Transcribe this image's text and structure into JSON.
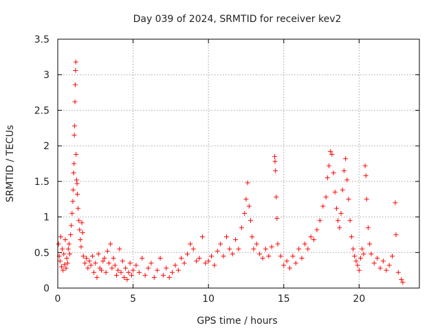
{
  "chart_data": {
    "type": "scatter",
    "title": "Day 039 of 2024, SRMTID for receiver kev2",
    "xlabel": "GPS time / hours",
    "ylabel": "SRMTID / TECUs",
    "xlim": [
      0,
      24
    ],
    "ylim": [
      0,
      3.5
    ],
    "x_ticks": [
      0,
      5,
      10,
      15,
      20
    ],
    "x_tick_labels": [
      "0",
      "5",
      "10",
      "15",
      "20"
    ],
    "y_ticks": [
      0,
      0.5,
      1,
      1.5,
      2,
      2.5,
      3,
      3.5
    ],
    "y_tick_labels": [
      "0",
      "0.5",
      "1",
      "1.5",
      "2",
      "2.5",
      "3",
      "3.5"
    ],
    "grid": true,
    "marker": "+",
    "color": "#ff0000",
    "series": [
      {
        "name": "kev2",
        "points": [
          [
            0.05,
            0.62
          ],
          [
            0.1,
            0.45
          ],
          [
            0.15,
            0.38
          ],
          [
            0.2,
            0.72
          ],
          [
            0.25,
            0.3
          ],
          [
            0.3,
            0.55
          ],
          [
            0.35,
            0.25
          ],
          [
            0.4,
            0.48
          ],
          [
            0.45,
            0.33
          ],
          [
            0.5,
            0.68
          ],
          [
            0.55,
            0.28
          ],
          [
            0.6,
            0.42
          ],
          [
            0.65,
            0.35
          ],
          [
            0.7,
            0.55
          ],
          [
            0.75,
            0.62
          ],
          [
            0.8,
            0.48
          ],
          [
            0.85,
            0.75
          ],
          [
            0.9,
            0.88
          ],
          [
            0.95,
            1.05
          ],
          [
            1.0,
            1.22
          ],
          [
            1.02,
            1.38
          ],
          [
            1.05,
            1.62
          ],
          [
            1.08,
            1.75
          ],
          [
            1.1,
            2.15
          ],
          [
            1.12,
            2.28
          ],
          [
            1.14,
            2.62
          ],
          [
            1.16,
            2.86
          ],
          [
            1.18,
            3.06
          ],
          [
            1.2,
            3.18
          ],
          [
            1.22,
            1.88
          ],
          [
            1.25,
            1.52
          ],
          [
            1.28,
            1.47
          ],
          [
            1.3,
            1.32
          ],
          [
            1.35,
            1.12
          ],
          [
            1.4,
            0.95
          ],
          [
            1.45,
            0.82
          ],
          [
            1.5,
            0.68
          ],
          [
            1.55,
            0.58
          ],
          [
            1.6,
            0.92
          ],
          [
            1.65,
            0.78
          ],
          [
            1.7,
            0.45
          ],
          [
            1.8,
            0.35
          ],
          [
            1.9,
            0.42
          ],
          [
            2.0,
            0.28
          ],
          [
            2.1,
            0.38
          ],
          [
            2.2,
            0.32
          ],
          [
            2.3,
            0.45
          ],
          [
            2.4,
            0.22
          ],
          [
            2.5,
            0.35
          ],
          [
            2.6,
            0.15
          ],
          [
            2.7,
            0.48
          ],
          [
            2.8,
            0.28
          ],
          [
            2.9,
            0.25
          ],
          [
            3.0,
            0.38
          ],
          [
            3.1,
            0.42
          ],
          [
            3.2,
            0.22
          ],
          [
            3.3,
            0.52
          ],
          [
            3.4,
            0.35
          ],
          [
            3.5,
            0.62
          ],
          [
            3.6,
            0.28
          ],
          [
            3.7,
            0.42
          ],
          [
            3.8,
            0.32
          ],
          [
            3.9,
            0.18
          ],
          [
            4.0,
            0.25
          ],
          [
            4.1,
            0.55
          ],
          [
            4.2,
            0.22
          ],
          [
            4.3,
            0.38
          ],
          [
            4.4,
            0.15
          ],
          [
            4.5,
            0.28
          ],
          [
            4.6,
            0.12
          ],
          [
            4.7,
            0.22
          ],
          [
            4.8,
            0.35
          ],
          [
            4.9,
            0.18
          ],
          [
            5.0,
            0.25
          ],
          [
            5.2,
            0.32
          ],
          [
            5.4,
            0.22
          ],
          [
            5.6,
            0.42
          ],
          [
            5.8,
            0.18
          ],
          [
            6.0,
            0.28
          ],
          [
            6.2,
            0.35
          ],
          [
            6.4,
            0.15
          ],
          [
            6.6,
            0.25
          ],
          [
            6.8,
            0.42
          ],
          [
            7.0,
            0.18
          ],
          [
            7.2,
            0.28
          ],
          [
            7.4,
            0.15
          ],
          [
            7.6,
            0.22
          ],
          [
            7.8,
            0.32
          ],
          [
            8.0,
            0.25
          ],
          [
            8.2,
            0.42
          ],
          [
            8.4,
            0.35
          ],
          [
            8.6,
            0.48
          ],
          [
            8.8,
            0.62
          ],
          [
            9.0,
            0.55
          ],
          [
            9.2,
            0.38
          ],
          [
            9.4,
            0.42
          ],
          [
            9.6,
            0.72
          ],
          [
            9.8,
            0.35
          ],
          [
            10.0,
            0.38
          ],
          [
            10.2,
            0.45
          ],
          [
            10.4,
            0.32
          ],
          [
            10.6,
            0.52
          ],
          [
            10.8,
            0.62
          ],
          [
            11.0,
            0.45
          ],
          [
            11.2,
            0.72
          ],
          [
            11.4,
            0.55
          ],
          [
            11.6,
            0.48
          ],
          [
            11.8,
            0.68
          ],
          [
            12.0,
            0.55
          ],
          [
            12.2,
            0.85
          ],
          [
            12.4,
            1.05
          ],
          [
            12.5,
            1.25
          ],
          [
            12.6,
            1.48
          ],
          [
            12.7,
            1.15
          ],
          [
            12.8,
            0.95
          ],
          [
            12.9,
            0.72
          ],
          [
            13.0,
            0.55
          ],
          [
            13.2,
            0.62
          ],
          [
            13.4,
            0.48
          ],
          [
            13.6,
            0.42
          ],
          [
            13.8,
            0.55
          ],
          [
            14.0,
            0.45
          ],
          [
            14.2,
            0.58
          ],
          [
            14.4,
            1.85
          ],
          [
            14.42,
            1.78
          ],
          [
            14.45,
            1.65
          ],
          [
            14.5,
            1.28
          ],
          [
            14.55,
            0.98
          ],
          [
            14.6,
            0.62
          ],
          [
            14.8,
            0.45
          ],
          [
            15.0,
            0.32
          ],
          [
            15.2,
            0.38
          ],
          [
            15.4,
            0.28
          ],
          [
            15.6,
            0.45
          ],
          [
            15.8,
            0.35
          ],
          [
            16.0,
            0.55
          ],
          [
            16.2,
            0.42
          ],
          [
            16.4,
            0.62
          ],
          [
            16.6,
            0.55
          ],
          [
            16.8,
            0.72
          ],
          [
            17.0,
            0.68
          ],
          [
            17.2,
            0.82
          ],
          [
            17.4,
            0.95
          ],
          [
            17.6,
            1.15
          ],
          [
            17.8,
            1.28
          ],
          [
            17.9,
            1.55
          ],
          [
            18.0,
            1.72
          ],
          [
            18.1,
            1.92
          ],
          [
            18.2,
            1.88
          ],
          [
            18.3,
            1.62
          ],
          [
            18.4,
            1.35
          ],
          [
            18.5,
            1.12
          ],
          [
            18.6,
            0.95
          ],
          [
            18.7,
            0.85
          ],
          [
            18.8,
            1.05
          ],
          [
            18.9,
            1.38
          ],
          [
            19.0,
            1.65
          ],
          [
            19.1,
            1.82
          ],
          [
            19.2,
            1.52
          ],
          [
            19.3,
            1.25
          ],
          [
            19.4,
            0.95
          ],
          [
            19.5,
            0.72
          ],
          [
            19.6,
            0.55
          ],
          [
            19.7,
            0.45
          ],
          [
            19.8,
            0.38
          ],
          [
            19.9,
            0.32
          ],
          [
            20.0,
            0.25
          ],
          [
            20.1,
            0.42
          ],
          [
            20.2,
            0.55
          ],
          [
            20.3,
            0.48
          ],
          [
            20.4,
            1.72
          ],
          [
            20.45,
            1.58
          ],
          [
            20.5,
            1.25
          ],
          [
            20.6,
            0.85
          ],
          [
            20.7,
            0.62
          ],
          [
            20.8,
            0.48
          ],
          [
            21.0,
            0.35
          ],
          [
            21.2,
            0.42
          ],
          [
            21.4,
            0.28
          ],
          [
            21.6,
            0.38
          ],
          [
            21.8,
            0.25
          ],
          [
            22.0,
            0.32
          ],
          [
            22.2,
            0.45
          ],
          [
            22.4,
            1.2
          ],
          [
            22.45,
            0.75
          ],
          [
            22.6,
            0.22
          ],
          [
            22.8,
            0.12
          ],
          [
            22.9,
            0.08
          ]
        ]
      }
    ]
  }
}
